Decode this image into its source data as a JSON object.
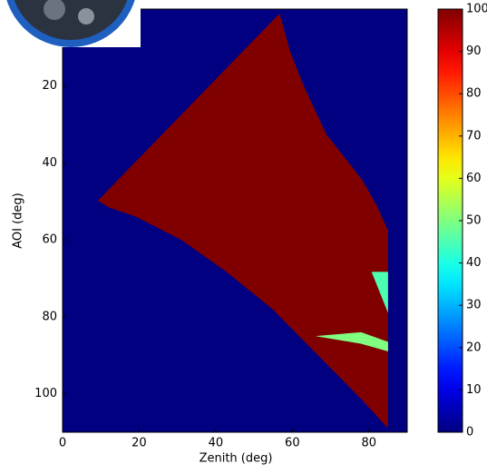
{
  "chart_data": {
    "type": "heatmap",
    "x_label": "Zenith (deg)",
    "y_label": "AOI (deg)",
    "xlim": [
      0,
      90
    ],
    "ylim": [
      0,
      110
    ],
    "y_inverted": true,
    "xticks": [
      0,
      20,
      40,
      60,
      80
    ],
    "yticks": [
      20,
      40,
      60,
      80,
      100
    ],
    "colormap": "jet",
    "clim": [
      0,
      100
    ],
    "cticks": [
      0,
      10,
      20,
      30,
      40,
      50,
      60,
      70,
      80,
      90,
      100
    ],
    "background_value": 0,
    "regions": [
      {
        "value": 100,
        "points": [
          [
            9.2,
            49.8
          ],
          [
            56.6,
            1.2
          ],
          [
            57.5,
            4
          ],
          [
            59.4,
            11
          ],
          [
            63,
            20
          ],
          [
            68.9,
            32.6
          ],
          [
            74,
            39
          ],
          [
            78.3,
            44.5
          ],
          [
            82,
            51
          ],
          [
            85,
            57.6
          ],
          [
            85,
            109
          ],
          [
            78.3,
            101.7
          ],
          [
            66.5,
            89.8
          ],
          [
            54.7,
            77.9
          ],
          [
            42.8,
            68.3
          ],
          [
            31,
            60
          ],
          [
            19.2,
            54
          ],
          [
            12,
            51.5
          ]
        ]
      },
      {
        "value": 45,
        "points": [
          [
            80.7,
            68.3
          ],
          [
            85,
            68.3
          ],
          [
            85,
            79
          ]
        ]
      },
      {
        "value": 50,
        "points": [
          [
            66,
            85
          ],
          [
            78,
            84
          ],
          [
            85,
            86.5
          ],
          [
            85,
            89
          ],
          [
            78,
            87
          ]
        ]
      }
    ]
  }
}
